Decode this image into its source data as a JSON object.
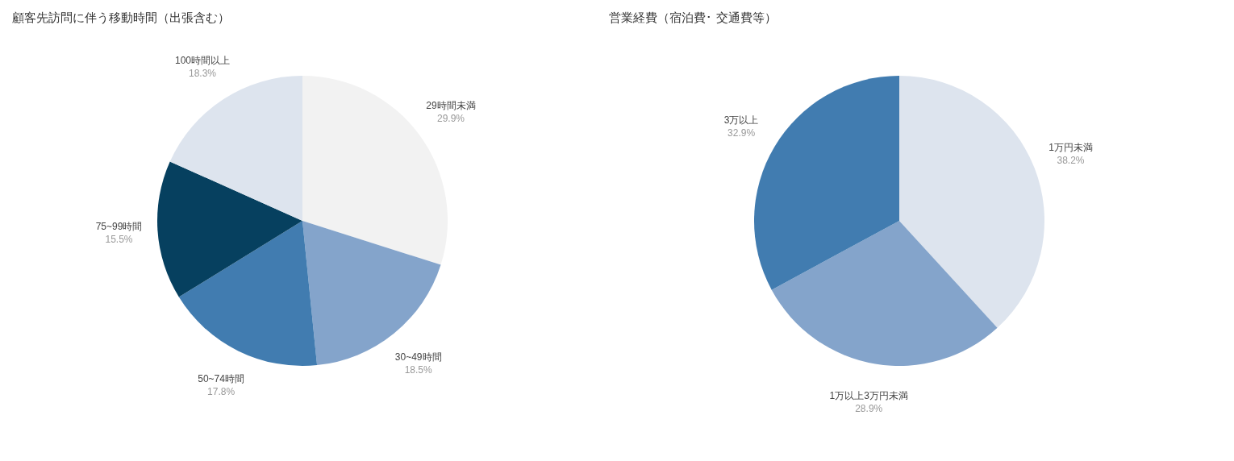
{
  "chart_data": [
    {
      "type": "pie",
      "title": "顧客先訪問に伴う移動時間（出張含む）",
      "categories": [
        "29時間未満",
        "30~49時間",
        "50~74時間",
        "75~99時間",
        "100時間以上"
      ],
      "values": [
        29.9,
        18.5,
        17.8,
        15.5,
        18.3
      ],
      "colors": [
        "#f2f2f2",
        "#84a4cb",
        "#417cb0",
        "#06405f",
        "#dde4ee"
      ],
      "value_labels": [
        "29.9%",
        "18.5%",
        "17.8%",
        "15.5%",
        "18.3%"
      ],
      "legend": false
    },
    {
      "type": "pie",
      "title": "営業経費（宿泊費･ 交通費等）",
      "categories": [
        "1万円未満",
        "1万以上3万円未満",
        "3万以上"
      ],
      "values": [
        38.2,
        28.9,
        32.9
      ],
      "colors": [
        "#dde4ee",
        "#84a4cb",
        "#417cb0"
      ],
      "value_labels": [
        "38.2%",
        "28.9%",
        "32.9%"
      ],
      "legend": false
    }
  ]
}
